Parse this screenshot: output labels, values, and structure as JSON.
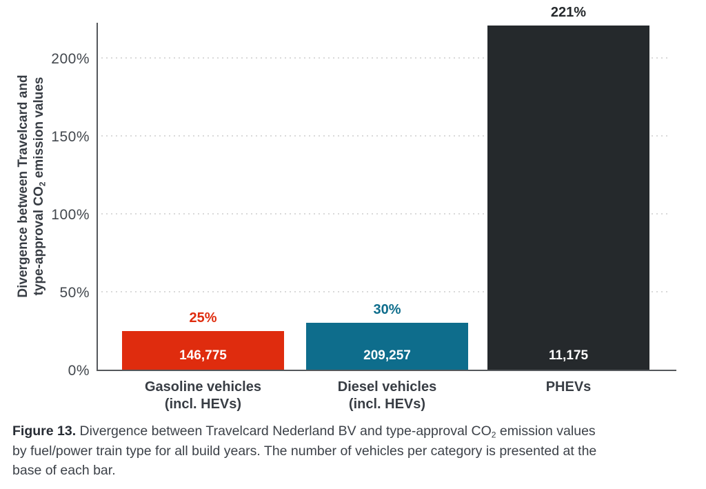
{
  "chart_data": {
    "type": "bar",
    "title": "",
    "y_axis_title": {
      "full_text": "Divergence between Travelcard and type-approval CO2 emission values",
      "line1": "Divergence between Travelcard and",
      "line2_pre": "type-approval CO",
      "line2_sub": "2",
      "line2_post": " emission values"
    },
    "categories": [
      "Gasoline vehicles (incl. HEVs)",
      "Diesel vehicles (incl. HEVs)",
      "PHEVs"
    ],
    "values": [
      25,
      30,
      221
    ],
    "ylim": [
      0,
      223
    ],
    "yticks": [
      {
        "label": "0%",
        "value": 0
      },
      {
        "label": "50%",
        "value": 50
      },
      {
        "label": "100%",
        "value": 100
      },
      {
        "label": "150%",
        "value": 150
      },
      {
        "label": "200%",
        "value": 200
      }
    ],
    "grid": {
      "style": "dotted-horizontal",
      "color": "#d9d9d9",
      "at": [
        50,
        100,
        150,
        200
      ]
    },
    "legend": "none",
    "bars": [
      {
        "id": "gasoline-vehicles",
        "category_line1": "Gasoline vehicles",
        "category_line2": "(incl. HEVs)",
        "value_pct": 25,
        "value_label": "25%",
        "vehicle_count": "146,775",
        "color": "#df2c0e"
      },
      {
        "id": "diesel-vehicles",
        "category_line1": "Diesel vehicles",
        "category_line2": "(incl. HEVs)",
        "value_pct": 30,
        "value_label": "30%",
        "vehicle_count": "209,257",
        "color": "#0e6d8c"
      },
      {
        "id": "phevs",
        "category_line1": "PHEVs",
        "category_line2": "",
        "value_pct": 221,
        "value_label": "221%",
        "vehicle_count": "11,175",
        "color": "#25292c"
      }
    ]
  },
  "caption": {
    "label": "Figure 13.",
    "line1_rest": " Divergence between Travelcard Nederland BV and type-approval CO",
    "line1_sub": "2",
    "line1_end": " emission values",
    "line2": "by fuel/power train type for all build years. The number of vehicles per category is presented at the",
    "line3": "base of each bar."
  }
}
